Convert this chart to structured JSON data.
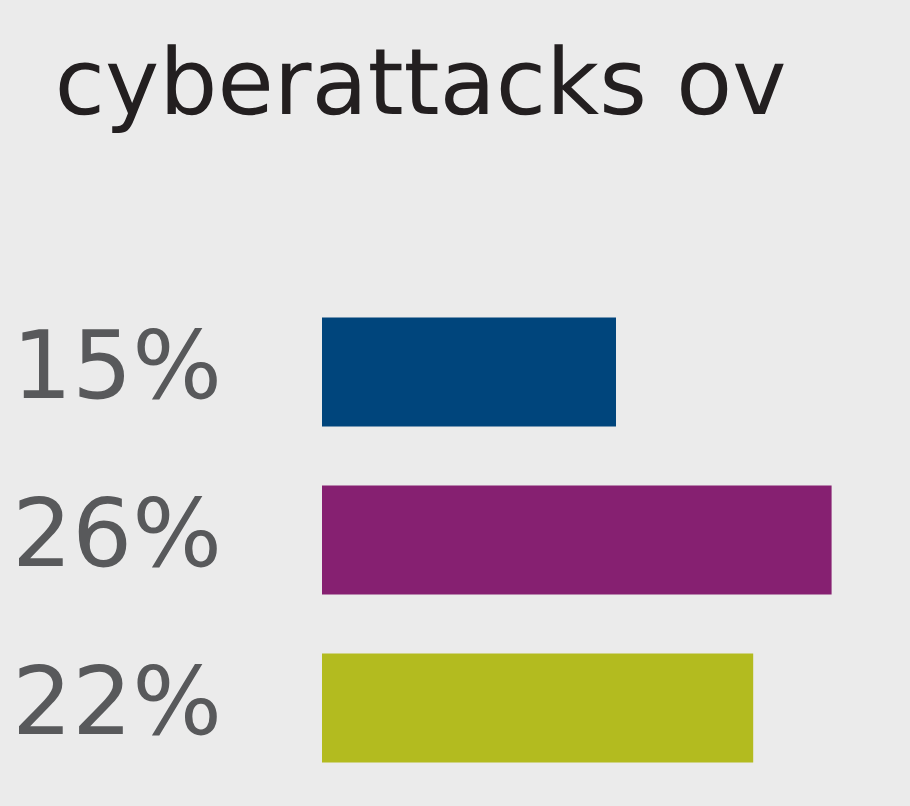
{
  "chart_data": {
    "type": "bar",
    "orientation": "horizontal",
    "title": "cyberattacks ov",
    "categories": [
      null,
      null,
      null
    ],
    "values": [
      15,
      26,
      22
    ],
    "colors": [
      "#00457c",
      "#862071",
      "#b3bb1f"
    ],
    "value_labels": [
      "15%",
      "26%",
      "22%"
    ],
    "xlim": [
      0,
      30
    ]
  }
}
